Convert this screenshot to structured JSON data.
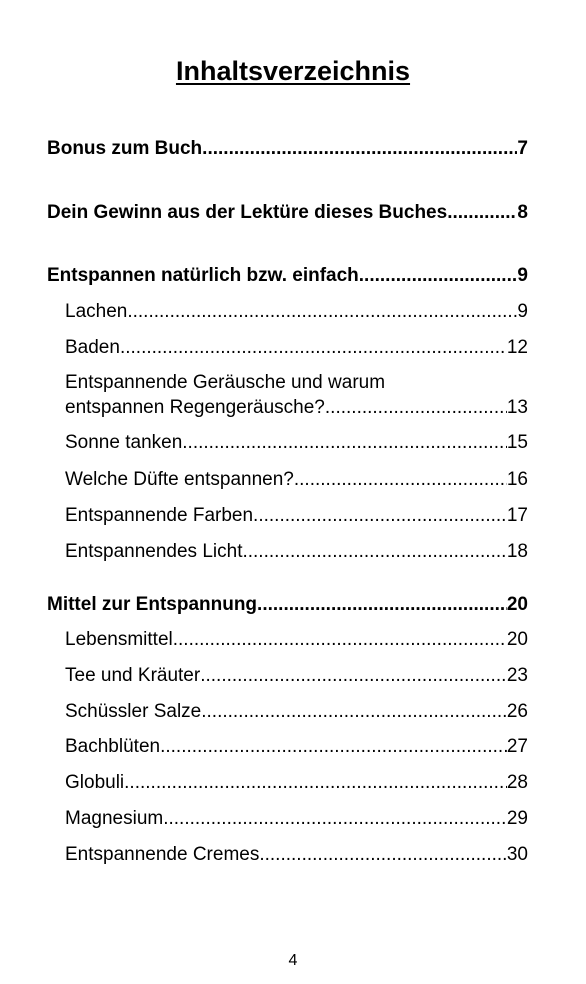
{
  "title": "Inhaltsverzeichnis",
  "entries": {
    "e0": {
      "label": "Bonus zum Buch",
      "page": "7"
    },
    "e1": {
      "label": "Dein Gewinn aus der Lektüre dieses Buches",
      "page": "8"
    },
    "e2": {
      "label": "Entspannen natürlich bzw. einfach ",
      "page": "9"
    },
    "e3": {
      "label": "Lachen ",
      "page": "9"
    },
    "e4": {
      "label": "Baden",
      "page": "12"
    },
    "e5": {
      "label_line1": "Entspannende Geräusche und warum",
      "label": "entspannen Regengeräusche? ",
      "page": "13"
    },
    "e6": {
      "label": "Sonne tanken",
      "page": "15"
    },
    "e7": {
      "label": "Welche Düfte entspannen?",
      "page": "16"
    },
    "e8": {
      "label": "Entspannende Farben",
      "page": "17"
    },
    "e9": {
      "label": "Entspannendes Licht",
      "page": "18"
    },
    "e10": {
      "label": "Mittel zur Entspannung ",
      "page": "20"
    },
    "e11": {
      "label": "Lebensmittel",
      "page": "20"
    },
    "e12": {
      "label": "Tee und Kräuter ",
      "page": "23"
    },
    "e13": {
      "label": "Schüssler Salze ",
      "page": "26"
    },
    "e14": {
      "label": "Bachblüten ",
      "page": "27"
    },
    "e15": {
      "label": "Globuli",
      "page": "28"
    },
    "e16": {
      "label": "Magnesium ",
      "page": "29"
    },
    "e17": {
      "label": "Entspannende Cremes ",
      "page": "30"
    }
  },
  "page_number": "4"
}
